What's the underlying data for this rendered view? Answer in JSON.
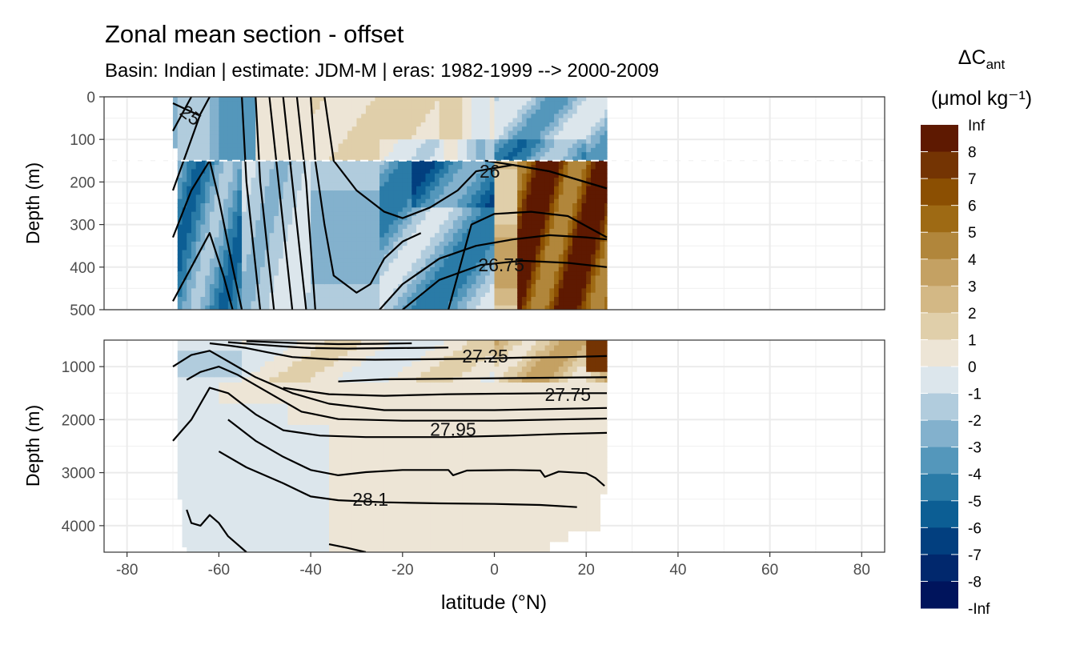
{
  "title": "Zonal mean section - offset",
  "subtitle": "Basin: Indian | estimate: JDM-M | eras: 1982-1999 --> 2000-2009",
  "colors": {
    "bins": [
      "#00145c",
      "#01286d",
      "#023f7f",
      "#0c5e94",
      "#2a7ba7",
      "#5497bb",
      "#83b1cd",
      "#b1ccdd",
      "#dce6ec",
      "#ede5d6",
      "#e0cfaa",
      "#d3b885",
      "#c4a163",
      "#b1863b",
      "#9e6a14",
      "#8b4f02",
      "#743403",
      "#5e1901"
    ],
    "contour": "#000000",
    "dash": "#ffffff"
  },
  "chart_data": {
    "type": "heatmap",
    "title": "Zonal mean section - offset",
    "subtitle": "Basin: Indian | estimate: JDM-M | eras: 1982-1999 --> 2000-2009",
    "xlabel": "latitude (°N)",
    "ylabel": "Depth (m)",
    "xlim": [
      -85,
      85
    ],
    "x_ticks": [
      "-80",
      "-60",
      "-40",
      "-20",
      "0",
      "20",
      "40",
      "60",
      "80"
    ],
    "data_lat_range": [
      -70,
      24.5
    ],
    "panels": [
      {
        "name": "upper",
        "ylim": [
          0,
          500
        ],
        "y_ticks": [
          "0",
          "100",
          "200",
          "300",
          "400",
          "500"
        ]
      },
      {
        "name": "lower",
        "ylim": [
          500,
          4500
        ],
        "y_ticks": [
          "1000",
          "2000",
          "3000",
          "4000"
        ]
      }
    ],
    "reference_depth": 150,
    "legend": {
      "title": "ΔCant",
      "unit": "(μmol kg⁻¹)",
      "placement": "right",
      "breaks": [
        "Inf",
        "8",
        "7",
        "6",
        "5",
        "4",
        "3",
        "2",
        "1",
        "0",
        "-1",
        "-2",
        "-3",
        "-4",
        "-5",
        "-6",
        "-7",
        "-8",
        "-Inf"
      ]
    },
    "isopycnal_labels": [
      {
        "text": "25",
        "lat": -67,
        "depth": 40
      },
      {
        "text": "26",
        "lat": -1,
        "depth": 175
      },
      {
        "text": "26.75",
        "lat": 1.5,
        "depth": 395
      },
      {
        "text": "27.25",
        "lat": -2,
        "depth": 800
      },
      {
        "text": "27.75",
        "lat": 16,
        "depth": 1530
      },
      {
        "text": "27.95",
        "lat": -9,
        "depth": 2180
      },
      {
        "text": "28.1",
        "lat": -27,
        "depth": 3500
      }
    ]
  }
}
